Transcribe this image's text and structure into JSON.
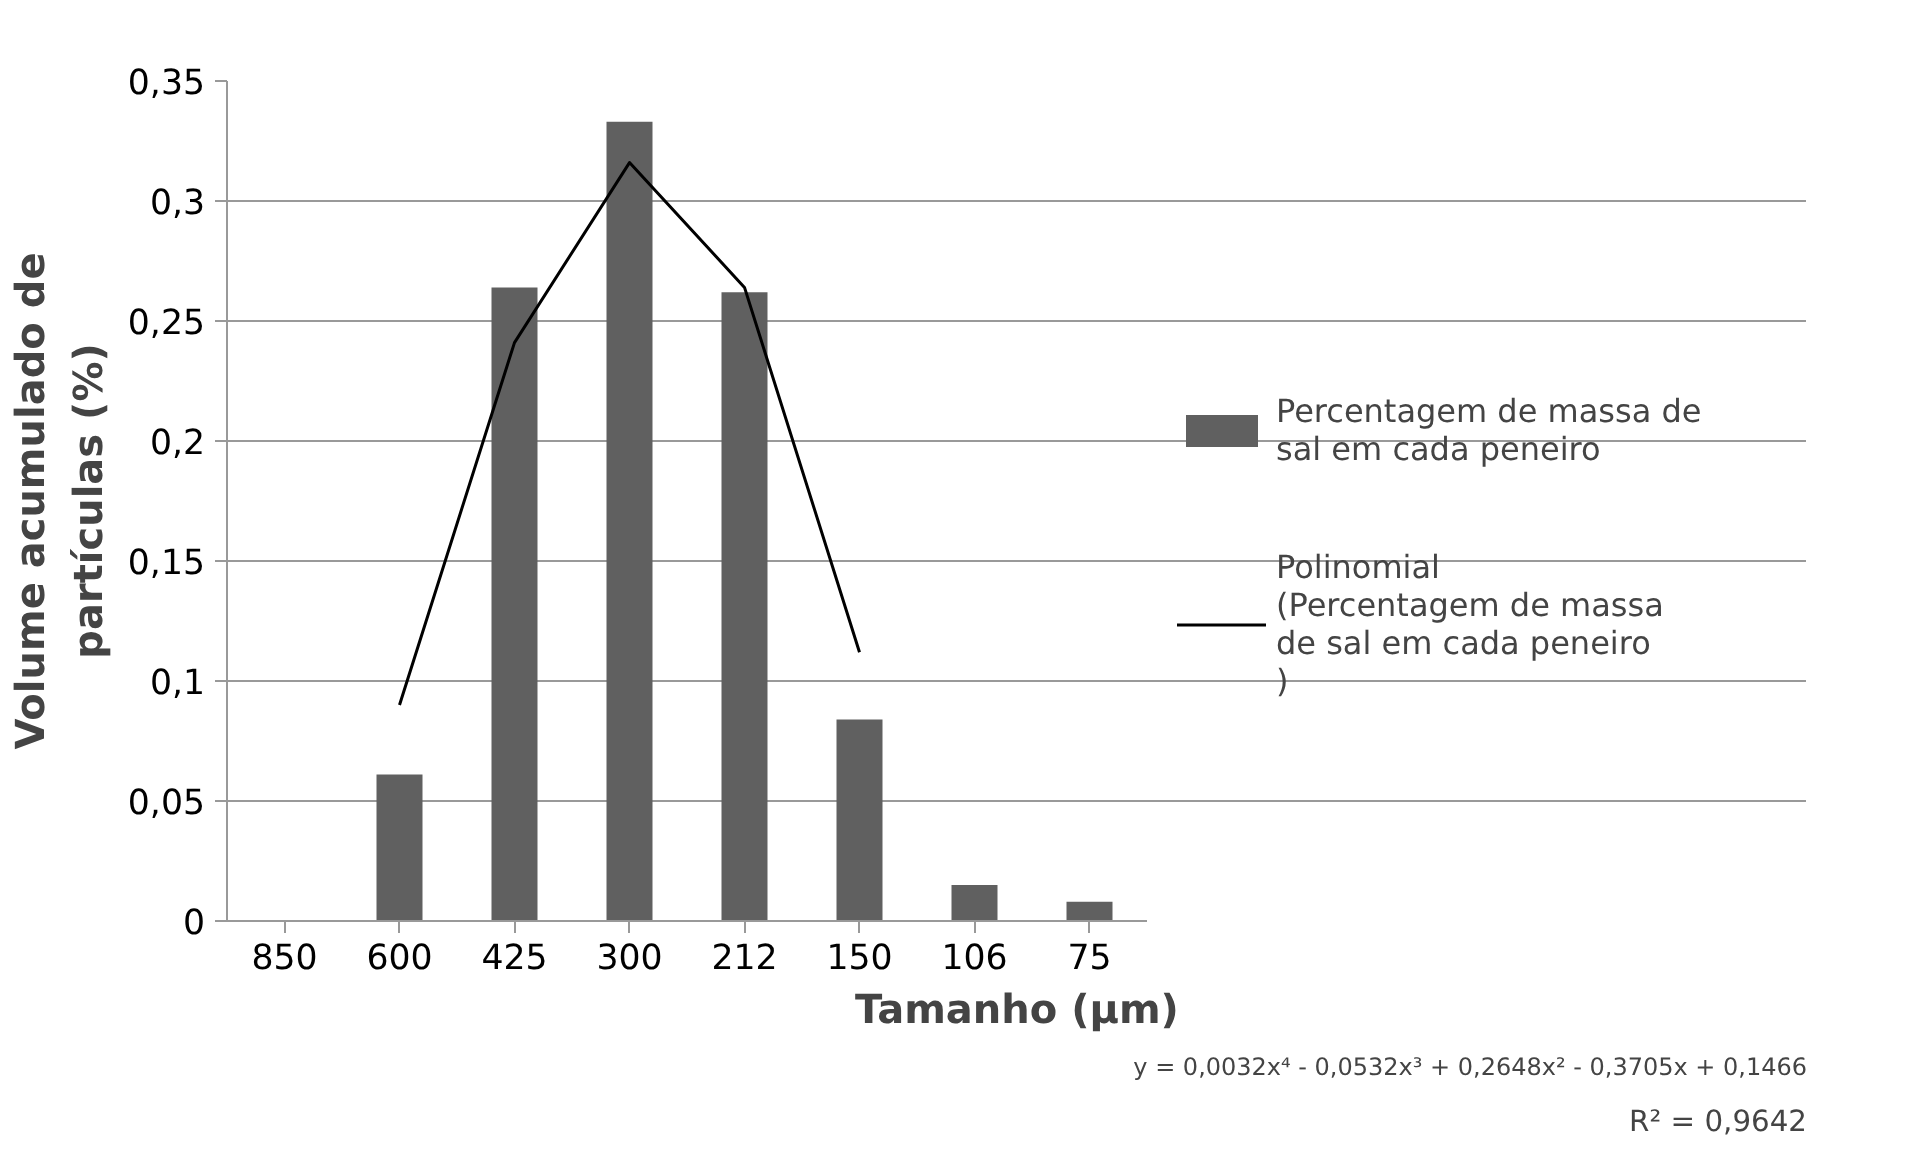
{
  "chart_data": {
    "type": "bar",
    "xlabel": "Tamanho (µm)",
    "ylabel": "Volume acumulado de partículas (%)",
    "categories": [
      "850",
      "600",
      "425",
      "300",
      "212",
      "150",
      "106",
      "75"
    ],
    "ylim": [
      0,
      0.35
    ],
    "yticks": [
      {
        "value": 0,
        "label": "0"
      },
      {
        "value": 0.05,
        "label": "0,05"
      },
      {
        "value": 0.1,
        "label": "0,1"
      },
      {
        "value": 0.15,
        "label": "0,15"
      },
      {
        "value": 0.2,
        "label": "0,2"
      },
      {
        "value": 0.25,
        "label": "0,25"
      },
      {
        "value": 0.3,
        "label": "0,3"
      },
      {
        "value": 0.35,
        "label": "0,35"
      }
    ],
    "grid": "y",
    "legend": "right",
    "series": [
      {
        "name": "Percentagem de massa de sal em cada peneiro",
        "color": "#606060",
        "values": [
          0,
          0.061,
          0.264,
          0.333,
          0.262,
          0.084,
          0.015,
          0.008
        ]
      },
      {
        "name": "Polinomial (Percentagem de massa de sal em cada peneiro )",
        "type": "line",
        "color": "#000000",
        "values": [
          null,
          0.09,
          0.241,
          0.316,
          0.264,
          0.112,
          null,
          null
        ]
      }
    ],
    "annotations": [
      "y = 0,0032x⁴ - 0,0532x³ + 0,2648x² - 0,3705x + 0,1466",
      "R² = 0,9642"
    ]
  }
}
